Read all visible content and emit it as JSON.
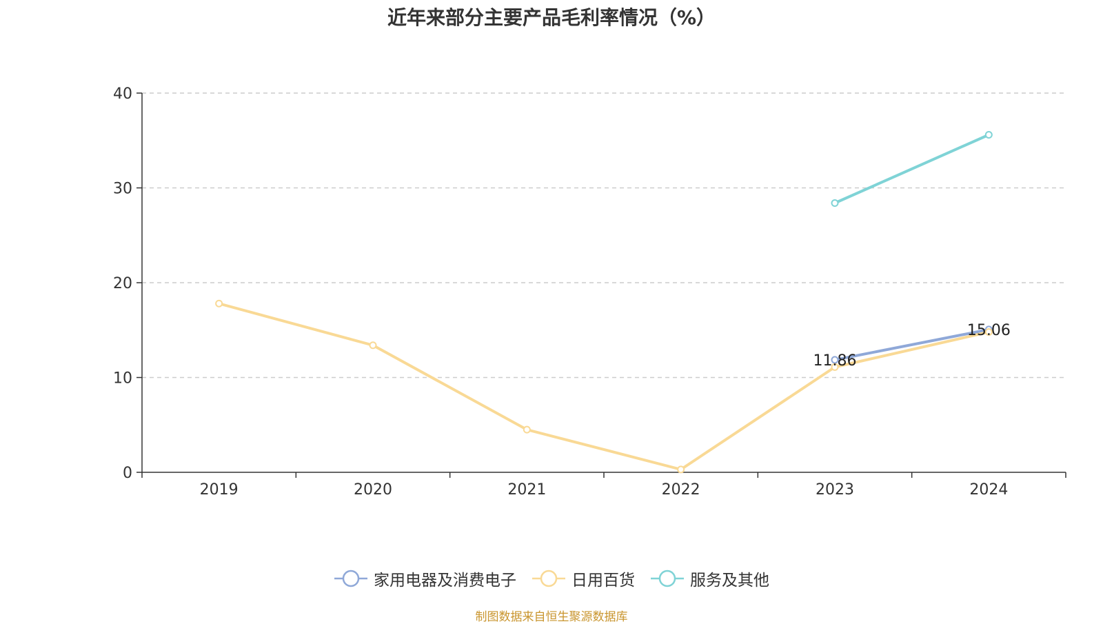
{
  "chart_data": {
    "type": "line",
    "title": "近年来部分主要产品毛利率情况（%）",
    "categories": [
      "2019",
      "2020",
      "2021",
      "2022",
      "2023",
      "2024"
    ],
    "ylim": [
      0,
      40
    ],
    "yticks": [
      0,
      10,
      20,
      30,
      40
    ],
    "ytick_labels": [
      "0",
      "10",
      "20",
      "30",
      "40"
    ],
    "grid": "horizontal-dashed",
    "legend_position": "bottom-center",
    "series": [
      {
        "name": "家用电器及消费电子",
        "color": "#8fa8d8",
        "values": [
          null,
          null,
          null,
          null,
          11.86,
          15.06
        ],
        "data_labels": [
          null,
          null,
          null,
          null,
          "11.86",
          "15.06"
        ]
      },
      {
        "name": "日用百货",
        "color": "#f9d995",
        "values": [
          17.8,
          13.4,
          4.5,
          0.3,
          11.1,
          14.8
        ],
        "data_labels": [
          null,
          null,
          null,
          null,
          null,
          null
        ]
      },
      {
        "name": "服务及其他",
        "color": "#7fd3d6",
        "values": [
          null,
          null,
          null,
          null,
          28.4,
          35.6
        ],
        "data_labels": [
          null,
          null,
          null,
          null,
          null,
          null
        ]
      }
    ]
  },
  "source_note": "制图数据来自恒生聚源数据库"
}
